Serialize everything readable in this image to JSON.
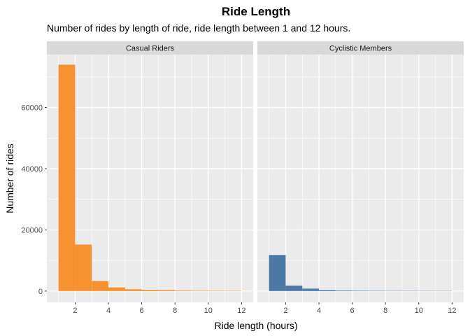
{
  "chart_data": {
    "type": "bar",
    "title": "Ride Length",
    "subtitle": "Number of rides by length of ride, ride length between 1 and 12 hours.",
    "xlabel": "Ride length (hours)",
    "ylabel": "Number of rides",
    "xlim": [
      0.3,
      12.7
    ],
    "ylim": [
      -3700,
      77300
    ],
    "x_ticks": [
      2,
      4,
      6,
      8,
      10,
      12
    ],
    "y_ticks": [
      0,
      20000,
      40000,
      60000
    ],
    "grid": true,
    "bin_edges": [
      1,
      2,
      3,
      4,
      5,
      6,
      7,
      8,
      9,
      10,
      11,
      12
    ],
    "panels": [
      {
        "name": "Casual Riders",
        "color": "#f5912f",
        "values": [
          74000,
          15200,
          3300,
          1200,
          600,
          400,
          350,
          200,
          150,
          120,
          100
        ]
      },
      {
        "name": "Cyclistic Members",
        "color": "#4e79a7",
        "values": [
          11800,
          1800,
          800,
          350,
          200,
          150,
          120,
          100,
          90,
          80,
          70
        ]
      }
    ]
  }
}
